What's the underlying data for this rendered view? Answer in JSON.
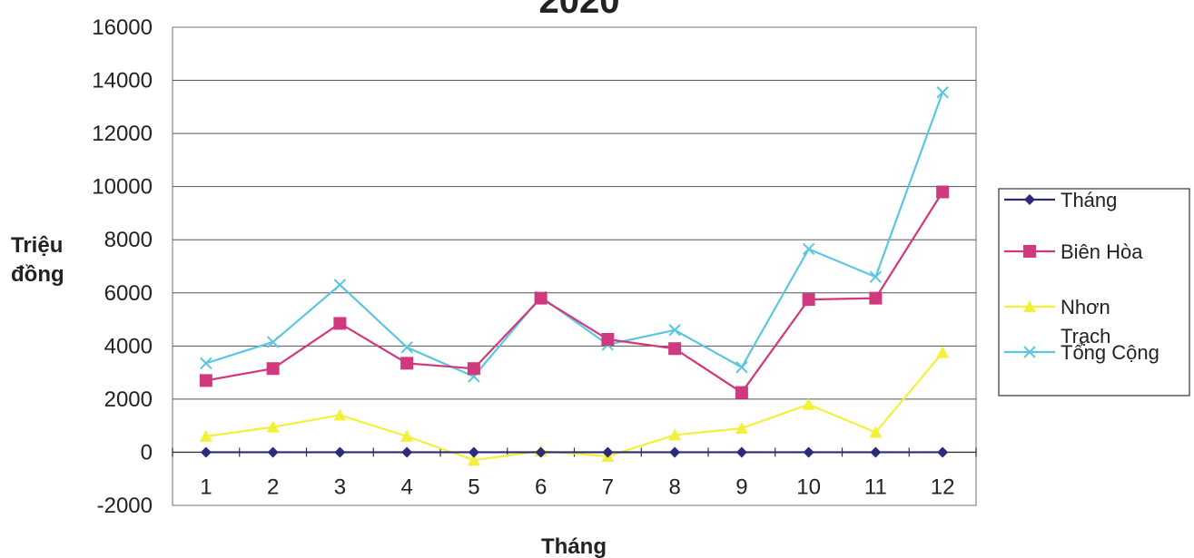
{
  "chart_data": {
    "type": "line",
    "title": "2020",
    "xlabel": "Tháng",
    "ylabel": "Triệu đồng",
    "categories": [
      "1",
      "2",
      "3",
      "4",
      "5",
      "6",
      "7",
      "8",
      "9",
      "10",
      "11",
      "12"
    ],
    "ylim": [
      -2000,
      16000
    ],
    "yticks": [
      -2000,
      0,
      2000,
      4000,
      6000,
      8000,
      10000,
      12000,
      14000,
      16000
    ],
    "grid": true,
    "legend_position": "right",
    "series": [
      {
        "name": "Tháng",
        "color": "#2e2a7a",
        "marker": "diamond",
        "values": [
          0,
          0,
          0,
          0,
          0,
          0,
          0,
          0,
          0,
          0,
          0,
          0
        ]
      },
      {
        "name": "Biên Hòa",
        "color": "#d0397e",
        "marker": "square",
        "values": [
          2700,
          3150,
          4850,
          3350,
          3150,
          5800,
          4250,
          3900,
          2250,
          5750,
          5800,
          9800
        ]
      },
      {
        "name": "Nhơn Trạch",
        "color": "#f3f03a",
        "marker": "triangle",
        "values": [
          600,
          950,
          1400,
          600,
          -300,
          50,
          -150,
          650,
          900,
          1800,
          750,
          3750
        ]
      },
      {
        "name": "Tổng Cộng",
        "color": "#5cc6e0",
        "marker": "x",
        "values": [
          3350,
          4150,
          6300,
          3950,
          2850,
          5850,
          4050,
          4600,
          3200,
          7650,
          6600,
          13550
        ]
      }
    ]
  }
}
